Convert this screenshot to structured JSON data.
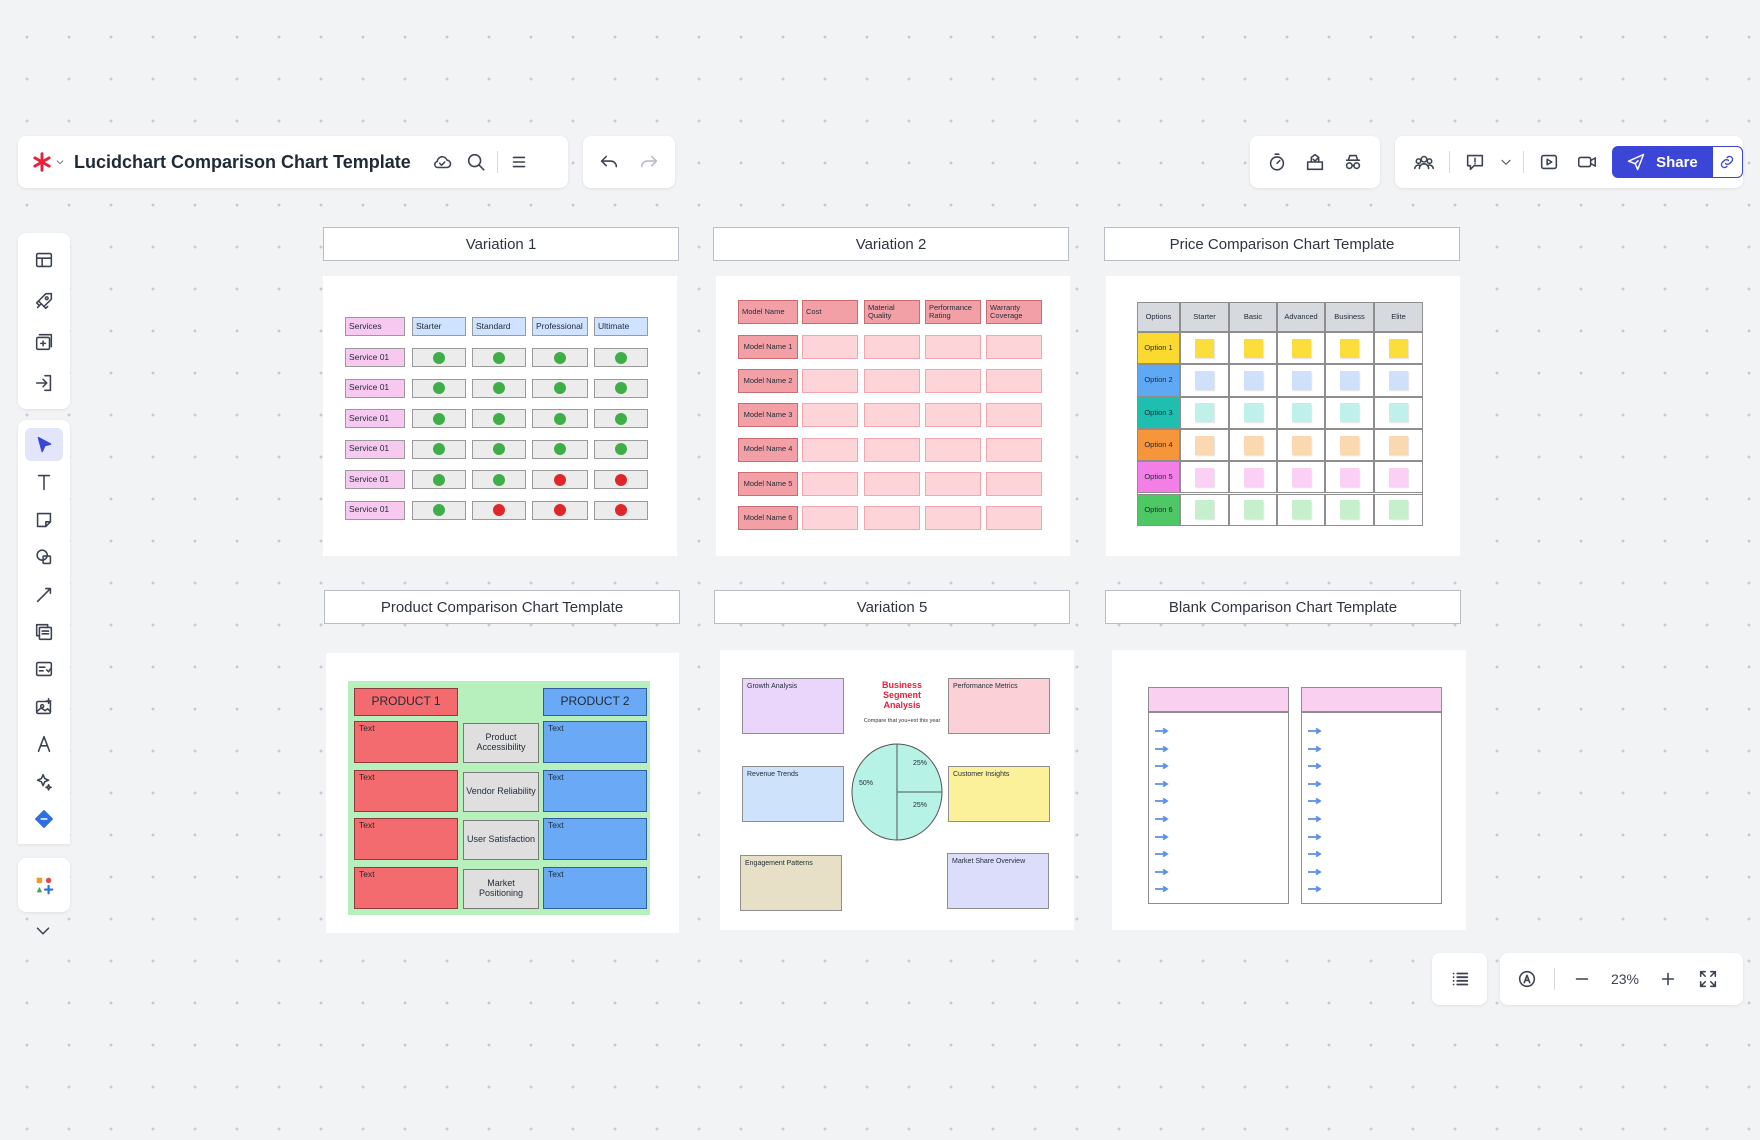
{
  "header": {
    "doc_title": "Lucidchart Comparison Chart Template",
    "share_label": "Share"
  },
  "icons": {
    "logo": "lucid-asterisk-icon",
    "cloud": "cloud-save-icon",
    "search": "search-icon",
    "menu": "hamburger-menu-icon",
    "undo": "undo-icon",
    "redo": "redo-icon"
  },
  "colors": {
    "accent": "#3b45d6",
    "logo": "#e8213b",
    "green_dot": "#3fae49",
    "red_dot": "#e0262a",
    "pink_cell": "#f7c9f0",
    "blue_cell": "#cfe2ff"
  },
  "frames": [
    {
      "label": "Variation 1"
    },
    {
      "label": "Variation 2"
    },
    {
      "label": "Price Comparison Chart Template"
    },
    {
      "label": "Product Comparison Chart Template"
    },
    {
      "label": "Variation 5"
    },
    {
      "label": "Blank Comparison Chart Template"
    }
  ],
  "variation1": {
    "headers": [
      "Services",
      "Starter",
      "Standard",
      "Professional",
      "Ultimate"
    ],
    "rows": [
      {
        "label": "Service 01",
        "status": [
          "green",
          "green",
          "green",
          "green"
        ]
      },
      {
        "label": "Service 01",
        "status": [
          "green",
          "green",
          "green",
          "green"
        ]
      },
      {
        "label": "Service 01",
        "status": [
          "green",
          "green",
          "green",
          "green"
        ]
      },
      {
        "label": "Service 01",
        "status": [
          "green",
          "green",
          "green",
          "green"
        ]
      },
      {
        "label": "Service 01",
        "status": [
          "green",
          "green",
          "red",
          "red"
        ]
      },
      {
        "label": "Service 01",
        "status": [
          "green",
          "red",
          "red",
          "red"
        ]
      }
    ]
  },
  "variation2": {
    "headers": [
      "Model Name",
      "Cost",
      "Material Quality",
      "Performance Rating",
      "Warranty Coverage"
    ],
    "rows": [
      "Model Name 1",
      "Model Name 2",
      "Model Name 3",
      "Model Name 4",
      "Model Name 5",
      "Model Name 6"
    ]
  },
  "price": {
    "headers": [
      "Options",
      "Starter",
      "Basic",
      "Advanced",
      "Business",
      "Elite"
    ],
    "rows": [
      {
        "label": "Option 1",
        "color": "#fbd92e",
        "note": "#fbdd3b"
      },
      {
        "label": "Option 2",
        "color": "#5fa8f3",
        "note": "#cfe0fb"
      },
      {
        "label": "Option 3",
        "color": "#1fbfb0",
        "note": "#bff0ea"
      },
      {
        "label": "Option 4",
        "color": "#f7953a",
        "note": "#fbd9b0"
      },
      {
        "label": "Option 5",
        "color": "#f27ee6",
        "note": "#fbd0f5"
      },
      {
        "label": "Option 6",
        "color": "#4ec765",
        "note": "#c6f0cd"
      }
    ]
  },
  "product": {
    "product1": "PRODUCT 1",
    "product2": "PRODUCT 2",
    "rows": [
      {
        "left": "Text",
        "mid": "Product Accessibility",
        "right": "Text"
      },
      {
        "left": "Text",
        "mid": "Vendor Reliability",
        "right": "Text"
      },
      {
        "left": "Text",
        "mid": "User Satisfaction",
        "right": "Text"
      },
      {
        "left": "Text",
        "mid": "Market Positioning",
        "right": "Text"
      }
    ]
  },
  "variation5": {
    "title": "Business Segment Analysis",
    "subtitle": "Compare that you+ext this year",
    "boxes": [
      {
        "label": "Growth Analysis",
        "color": "#ead6fb"
      },
      {
        "label": "Performance Metrics",
        "color": "#fbd0d6"
      },
      {
        "label": "Revenue Trends",
        "color": "#cfe2fb"
      },
      {
        "label": "Customer Insights",
        "color": "#fbf19a"
      },
      {
        "label": "Engagement Patterns",
        "color": "#e8e0c6"
      },
      {
        "label": "Market Share Overview",
        "color": "#dcdcfb"
      }
    ],
    "pie": {
      "labels": [
        "50%",
        "25%",
        "25%"
      ],
      "values": [
        50,
        25,
        25
      ]
    }
  },
  "zoom": {
    "value": "23%"
  }
}
